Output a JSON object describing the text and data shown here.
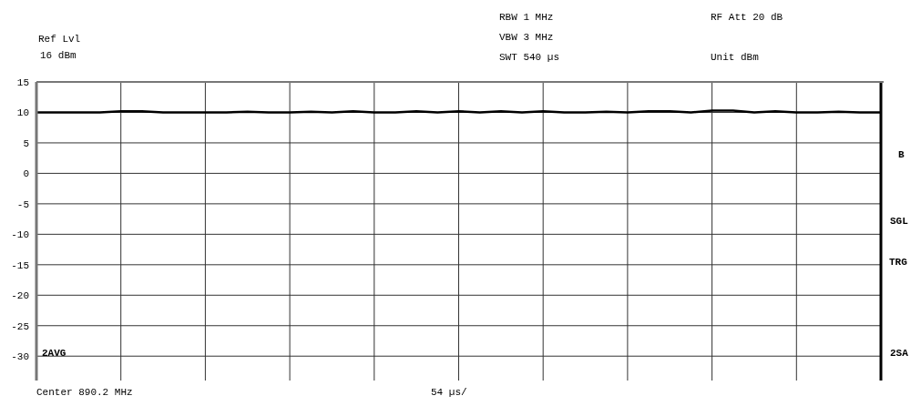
{
  "chart_data": {
    "type": "line",
    "categories": [
      null,
      null,
      null,
      null,
      null,
      null,
      null,
      null,
      null,
      null,
      null,
      null,
      null,
      null,
      null,
      null,
      null,
      null,
      null,
      null,
      null,
      null,
      null,
      null,
      null,
      null,
      null,
      null,
      null,
      null,
      null,
      null,
      null,
      null,
      null,
      null,
      null,
      null,
      null,
      null,
      null
    ],
    "series": [
      {
        "color": "#000000",
        "values": [
          10,
          10,
          10,
          10,
          10.2,
          10.2,
          10,
          10,
          10,
          10,
          10.1,
          10,
          10,
          10.1,
          10,
          10.2,
          10,
          10,
          10.2,
          10,
          10.2,
          10,
          10.2,
          10,
          10.2,
          10,
          10,
          10.1,
          10,
          10.2,
          10.2,
          10,
          10.3,
          10.3,
          10,
          10.2,
          10,
          10,
          10.1,
          10,
          10
        ]
      }
    ],
    "ylim": [
      -34,
      15
    ],
    "yticks": [
      15,
      10,
      5,
      0,
      -5,
      -10,
      -15,
      -20,
      -25,
      -30
    ],
    "tick_labels": "y",
    "grid": true,
    "marker": "none",
    "line_style": "solid",
    "annotations": [
      "Ref Lvl",
      "16 dBm",
      "RBW 1 MHz",
      "VBW 3 MHz",
      "SWT 540 µs",
      "RF Att 20 dB",
      "Unit dBm",
      "Center 890.2 MHz",
      "54 µs/",
      "B",
      "SGL",
      "TRG",
      "2SA",
      "2AVG"
    ]
  }
}
